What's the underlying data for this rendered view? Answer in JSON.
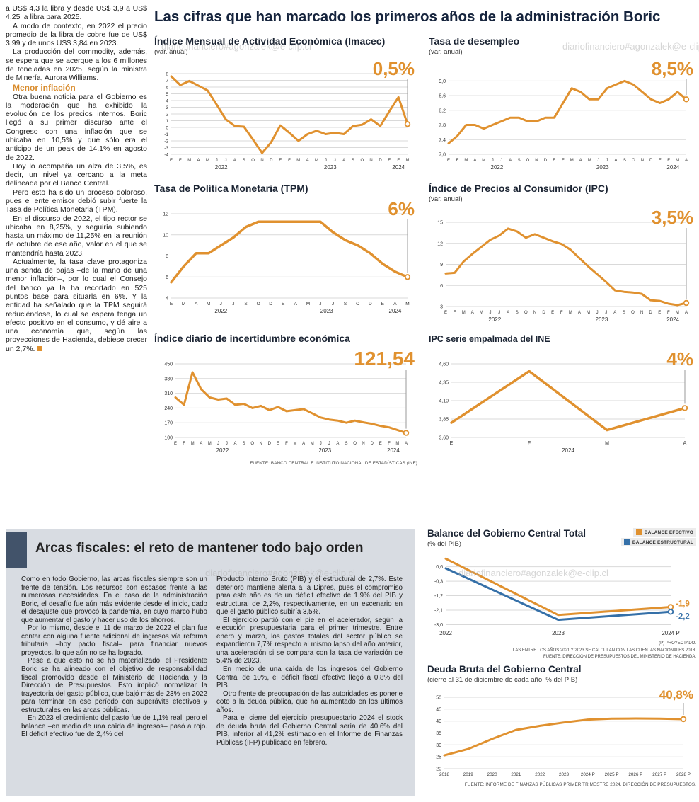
{
  "page": {
    "main_title": "Las cifras que han marcado los primeros años de la administración Boric",
    "watermark": "diariofinanciero#agonzalek@e-clip.cl"
  },
  "left_article": {
    "paragraphs": [
      "a US$ 4,3 la libra y desde US$ 3,9 a US$ 4,25 la libra para 2025.",
      "A modo de contexto, en 2022 el precio promedio de la libra de cobre fue de US$ 3,99 y de unos US$ 3,84 en 2023.",
      "La producción del commodity, además, se espera que se acerque a los 6 millones de toneladas en 2025, según la ministra de Minería, Aurora Williams."
    ],
    "subhead": "Menor inflación",
    "paragraphs2": [
      "Otra buena noticia para el Gobierno es la moderación que ha exhibido la evolución de los precios internos. Boric llegó a su primer discurso ante el Congreso con una inflación que se ubicaba en 10,5% y que sólo era el anticipo de un peak de 14,1% en agosto de 2022.",
      "Hoy lo acompaña un alza de 3,5%, es decir, un nivel ya cercano a la meta delineada por el Banco Central.",
      "Pero esto ha sido un proceso doloroso, pues el ente emisor debió subir fuerte la Tasa de Política Monetaria (TPM).",
      "En el discurso de 2022, el tipo rector se ubicaba en 8,25%, y seguiría subiendo hasta un máximo de 11,25% en la reunión de octubre de ese año, valor en el que se mantendría hasta 2023.",
      "Actualmente, la tasa clave protagoniza una senda de bajas –de la mano de una menor inflación–, por lo cual el Consejo del banco ya la ha recortado en 525 puntos base para situarla en 6%. Y la entidad ha señalado que la TPM seguirá reduciéndose, lo cual se espera tenga un efecto positivo en el consumo, y dé aire a una economía que, según las proyecciones de Hacienda, debiese crecer un 2,7%."
    ]
  },
  "charts_source": "FUENTE: BANCO CENTRAL E INSTITUTO NACIONAL DE ESTADÍSTICAS (INE)",
  "fiscal": {
    "title": "Arcas fiscales: el reto de mantener todo bajo orden",
    "col1": [
      "Como en todo Gobierno, las arcas fiscales siempre son un frente de tensión. Los recursos son escasos frente a las numerosas necesidades. En el caso de la administración Boric, el desafío fue aún más evidente desde el inicio, dado el desajuste que provocó la pandemia, en cuyo marco hubo que aumentar el gasto y hacer uso de los ahorros.",
      "Por lo mismo, desde el 11 de marzo de 2022 el plan fue contar con alguna fuente adicional de ingresos vía reforma tributaria –hoy pacto fiscal– para financiar nuevos proyectos, lo que aún no se ha logrado.",
      "Pese a que esto no se ha materializado, el Presidente Boric se ha alineado con el objetivo de responsabilidad fiscal promovido desde el Ministerio de Hacienda y la Dirección de Presupuestos. Esto implicó normalizar la trayectoria del gasto público, que bajó más de 23% en 2022 para terminar en ese período con superávits efectivos y estructurales en las arcas públicas.",
      "En 2023 el crecimiento del gasto fue de 1,1% real, pero el balance –en medio de una caída de ingresos– pasó a rojo. El déficit efectivo fue de 2,4% del"
    ],
    "col2": [
      "Producto Interno Bruto (PIB) y el estructural de 2,7%. Este deterioro mantiene alerta a la Dipres, pues el compromiso para este año es de un déficit efectivo de 1,9% del PIB y estructural de 2,2%, respectivamente, en un escenario en que el gasto público subiría 3,5%.",
      "El ejercicio partió con el pie en el acelerador, según la ejecución presupuestaria para el primer trimestre. Entre enero y marzo, los gastos totales del sector público se expandieron 7,7% respecto al mismo lapso del año anterior, una aceleración si se compara con la tasa de variación de 5,4% de 2023.",
      "En medio de una caída de los ingresos del Gobierno Central de 10%, el déficit fiscal efectivo llegó a 0,8% del PIB.",
      "Otro frente de preocupación de las autoridades es ponerle coto a la deuda pública, que ha aumentado en los últimos años.",
      "Para el cierre del ejercicio presupuestario 2024 el stock de deuda bruta del Gobierno Central sería de 40,6% del PIB, inferior al 41,2% estimado en el Informe de Finanzas Públicas (IFP) publicado en febrero."
    ]
  },
  "chart_data": [
    {
      "type": "line",
      "name": "imacec",
      "title": "Índice Mensual de Actividad Económica (Imacec)",
      "subtitle": "(var. anual)",
      "x_labels": [
        "E",
        "F",
        "M",
        "A",
        "M",
        "J",
        "J",
        "A",
        "S",
        "O",
        "N",
        "D",
        "E",
        "F",
        "M",
        "A",
        "M",
        "J",
        "J",
        "A",
        "S",
        "O",
        "N",
        "D",
        "E",
        "F",
        "M"
      ],
      "year_labels": [
        {
          "label": "2022",
          "start": 0,
          "end": 11
        },
        {
          "label": "2023",
          "start": 12,
          "end": 23
        },
        {
          "label": "2024",
          "start": 24,
          "end": 26
        }
      ],
      "ylim": [
        -4,
        8
      ],
      "yticks": [
        {
          "v": 8,
          "label": "8"
        },
        {
          "v": 7,
          "label": "7"
        },
        {
          "v": 6,
          "label": "6"
        },
        {
          "v": 5,
          "label": "5"
        },
        {
          "v": 4,
          "label": "4"
        },
        {
          "v": 3,
          "label": "3"
        },
        {
          "v": 2,
          "label": "2"
        },
        {
          "v": 1,
          "label": "1"
        },
        {
          "v": 0,
          "label": "0"
        },
        {
          "v": -1,
          "label": "-1"
        },
        {
          "v": -2,
          "label": "-2"
        },
        {
          "v": -3,
          "label": "-3"
        },
        {
          "v": -4,
          "label": "-4"
        }
      ],
      "series": [
        {
          "name": "Imacec",
          "color": "#e0912f",
          "values": [
            7.6,
            6.3,
            6.9,
            6.2,
            5.5,
            3.4,
            1.2,
            0.2,
            0.1,
            -1.8,
            -3.8,
            -2.2,
            0.3,
            -0.8,
            -2.0,
            -1.0,
            -0.5,
            -1.0,
            -0.8,
            -1.0,
            0.2,
            0.4,
            1.2,
            0.2,
            2.4,
            4.5,
            0.5
          ]
        }
      ],
      "callout": {
        "text": "0,5%",
        "color": "#e0912f"
      }
    },
    {
      "type": "line",
      "name": "desempleo",
      "title": "Tasa de desempleo",
      "subtitle": "(var. anual)",
      "x_labels": [
        "E",
        "F",
        "M",
        "A",
        "M",
        "J",
        "J",
        "A",
        "S",
        "O",
        "N",
        "D",
        "E",
        "F",
        "M",
        "A",
        "M",
        "J",
        "J",
        "A",
        "S",
        "O",
        "N",
        "D",
        "E",
        "F",
        "M",
        "A"
      ],
      "year_labels": [
        {
          "label": "2022",
          "start": 0,
          "end": 11
        },
        {
          "label": "2023",
          "start": 12,
          "end": 23
        },
        {
          "label": "2024",
          "start": 24,
          "end": 27
        }
      ],
      "ylim": [
        7.0,
        9.2
      ],
      "yticks": [
        {
          "v": 9.0,
          "label": "9,0"
        },
        {
          "v": 8.6,
          "label": "8,6"
        },
        {
          "v": 8.2,
          "label": "8,2"
        },
        {
          "v": 7.8,
          "label": "7,8"
        },
        {
          "v": 7.4,
          "label": "7,4"
        },
        {
          "v": 7.0,
          "label": "7,0"
        }
      ],
      "series": [
        {
          "name": "Tasa de desempleo",
          "color": "#e0912f",
          "values": [
            7.3,
            7.5,
            7.8,
            7.8,
            7.7,
            7.8,
            7.9,
            8.0,
            8.0,
            7.9,
            7.9,
            8.0,
            8.0,
            8.4,
            8.8,
            8.7,
            8.5,
            8.5,
            8.8,
            8.9,
            9.0,
            8.9,
            8.7,
            8.5,
            8.4,
            8.5,
            8.7,
            8.5
          ]
        }
      ],
      "callout": {
        "text": "8,5%",
        "color": "#e0912f"
      }
    },
    {
      "type": "line",
      "name": "tpm",
      "title": "Tasa de Política Monetaria (TPM)",
      "subtitle": "",
      "x_labels": [
        "E",
        "M",
        "A",
        "M",
        "J",
        "J",
        "S",
        "O",
        "D",
        "E",
        "A",
        "M",
        "J",
        "J",
        "S",
        "O",
        "D",
        "E",
        "A",
        "M"
      ],
      "year_labels": [
        {
          "label": "2022",
          "start": 0,
          "end": 8
        },
        {
          "label": "2023",
          "start": 9,
          "end": 16
        },
        {
          "label": "2024",
          "start": 17,
          "end": 19
        }
      ],
      "ylim": [
        4,
        12
      ],
      "yticks": [
        {
          "v": 12,
          "label": "12"
        },
        {
          "v": 10,
          "label": "10"
        },
        {
          "v": 8,
          "label": "8"
        },
        {
          "v": 6,
          "label": "6"
        },
        {
          "v": 4,
          "label": "4"
        }
      ],
      "series": [
        {
          "name": "TPM",
          "color": "#e0912f",
          "values": [
            5.5,
            7.0,
            8.25,
            8.25,
            9.0,
            9.75,
            10.75,
            11.25,
            11.25,
            11.25,
            11.25,
            11.25,
            11.25,
            10.25,
            9.5,
            9.0,
            8.25,
            7.25,
            6.5,
            6.0
          ]
        }
      ],
      "callout": {
        "text": "6%",
        "color": "#e0912f"
      }
    },
    {
      "type": "line",
      "name": "ipc",
      "title": "Índice de Precios al Consumidor (IPC)",
      "subtitle": "(var. anual)",
      "x_labels": [
        "E",
        "F",
        "M",
        "A",
        "M",
        "J",
        "J",
        "A",
        "S",
        "O",
        "N",
        "D",
        "E",
        "F",
        "M",
        "A",
        "M",
        "J",
        "J",
        "A",
        "S",
        "O",
        "N",
        "D",
        "E",
        "F",
        "M",
        "A"
      ],
      "year_labels": [
        {
          "label": "2022",
          "start": 0,
          "end": 11
        },
        {
          "label": "2023",
          "start": 12,
          "end": 23
        },
        {
          "label": "2024",
          "start": 24,
          "end": 27
        }
      ],
      "ylim": [
        3,
        15
      ],
      "yticks": [
        {
          "v": 15,
          "label": "15"
        },
        {
          "v": 12,
          "label": "12"
        },
        {
          "v": 9,
          "label": "9"
        },
        {
          "v": 6,
          "label": "6"
        },
        {
          "v": 3,
          "label": "3"
        }
      ],
      "series": [
        {
          "name": "IPC",
          "color": "#e0912f",
          "values": [
            7.7,
            7.8,
            9.4,
            10.5,
            11.5,
            12.5,
            13.1,
            14.1,
            13.7,
            12.8,
            13.3,
            12.8,
            12.3,
            11.9,
            11.1,
            9.9,
            8.7,
            7.6,
            6.5,
            5.3,
            5.1,
            5.0,
            4.8,
            3.9,
            3.8,
            3.4,
            3.2,
            3.5
          ]
        }
      ],
      "callout": {
        "text": "3,5%",
        "color": "#e0912f"
      }
    },
    {
      "type": "line",
      "name": "incertidumbre",
      "title": "Índice diario de incertidumbre económica",
      "subtitle": "",
      "x_labels": [
        "E",
        "F",
        "M",
        "A",
        "M",
        "J",
        "J",
        "A",
        "S",
        "O",
        "N",
        "D",
        "E",
        "F",
        "M",
        "A",
        "M",
        "J",
        "J",
        "A",
        "S",
        "O",
        "N",
        "D",
        "E",
        "F",
        "M",
        "A"
      ],
      "year_labels": [
        {
          "label": "2022",
          "start": 0,
          "end": 11
        },
        {
          "label": "2023",
          "start": 12,
          "end": 23
        },
        {
          "label": "2024",
          "start": 24,
          "end": 27
        }
      ],
      "ylim": [
        100,
        450
      ],
      "yticks": [
        {
          "v": 450,
          "label": "450"
        },
        {
          "v": 380,
          "label": "380"
        },
        {
          "v": 310,
          "label": "310"
        },
        {
          "v": 240,
          "label": "240"
        },
        {
          "v": 170,
          "label": "170"
        },
        {
          "v": 100,
          "label": "100"
        }
      ],
      "series": [
        {
          "name": "Incertidumbre económica",
          "color": "#e0912f",
          "values": [
            290,
            255,
            410,
            330,
            290,
            280,
            285,
            255,
            260,
            240,
            250,
            230,
            245,
            225,
            230,
            235,
            215,
            195,
            185,
            180,
            170,
            180,
            172,
            165,
            155,
            148,
            135,
            121.54
          ]
        }
      ],
      "callout": {
        "text": "121,54",
        "color": "#e0912f"
      }
    },
    {
      "type": "line",
      "name": "ipc-empalmada",
      "title": "IPC serie empalmada del INE",
      "subtitle": "",
      "x_labels": [
        "E",
        "F",
        "M",
        "A"
      ],
      "year_labels": [
        {
          "label": "2024",
          "start": 0,
          "end": 3
        }
      ],
      "ylim": [
        3.6,
        4.6
      ],
      "yticks": [
        {
          "v": 4.6,
          "label": "4,60"
        },
        {
          "v": 4.35,
          "label": "4,35"
        },
        {
          "v": 4.1,
          "label": "4,10"
        },
        {
          "v": 3.85,
          "label": "3,85"
        },
        {
          "v": 3.6,
          "label": "3,60"
        }
      ],
      "series": [
        {
          "name": "IPC serie empalmada",
          "color": "#e0912f",
          "values": [
            3.8,
            4.5,
            3.7,
            4.0
          ]
        }
      ],
      "callout": {
        "text": "4%",
        "color": "#e0912f"
      }
    },
    {
      "type": "line",
      "name": "balance-gobierno-central",
      "title": "Balance del Gobierno Central Total",
      "subtitle": "(% del PIB)",
      "x_labels": [
        "2022",
        "2023",
        "2024 P"
      ],
      "ylim": [
        -3.2,
        1.2
      ],
      "yticks": [
        {
          "v": 0.6,
          "label": "0,6"
        },
        {
          "v": -0.3,
          "label": "-0,3"
        },
        {
          "v": -1.2,
          "label": "-1,2"
        },
        {
          "v": -2.1,
          "label": "-2,1"
        },
        {
          "v": -3.0,
          "label": "-3,0"
        }
      ],
      "series": [
        {
          "name": "BALANCE EFECTIVO",
          "color": "#e0912f",
          "values": [
            1.1,
            -2.4,
            -1.9
          ],
          "end_label": "-1,9",
          "end_dy": -1
        },
        {
          "name": "BALANCE ESTRUCTURAL",
          "color": "#3570a8",
          "values": [
            0.5,
            -2.7,
            -2.2
          ],
          "end_label": "-2,2",
          "end_dy": 10
        }
      ],
      "legend": [
        {
          "label": "BALANCE EFECTIVO",
          "color": "#e0912f"
        },
        {
          "label": "BALANCE ESTRUCTURAL",
          "color": "#3570a8"
        }
      ],
      "notes": [
        "(P) PROYECTADO.",
        "LAS ENTRE LOS AÑOS 2021 Y 2023 SE CALCULAN CON LAS CUENTAS NACIONALES 2018.",
        "FUENTE: DIRECCIÓN DE PRESUPUESTOS DEL MINISTERIO DE HACIENDA."
      ]
    },
    {
      "type": "line",
      "name": "deuda-bruta",
      "title": "Deuda Bruta del Gobierno Central",
      "subtitle": "(cierre al 31 de diciembre de cada año, % del PIB)",
      "x_labels": [
        "2018",
        "2019",
        "2020",
        "2021",
        "2022",
        "2023",
        "2024 P",
        "2025 P",
        "2026 P",
        "2027 P",
        "2028 P"
      ],
      "ylim": [
        20,
        50
      ],
      "yticks": [
        {
          "v": 50,
          "label": "50"
        },
        {
          "v": 45,
          "label": "45"
        },
        {
          "v": 40,
          "label": "40"
        },
        {
          "v": 35,
          "label": "35"
        },
        {
          "v": 30,
          "label": "30"
        },
        {
          "v": 25,
          "label": "25"
        },
        {
          "v": 20,
          "label": "20"
        }
      ],
      "series": [
        {
          "name": "Deuda bruta",
          "color": "#e0912f",
          "values": [
            25.6,
            28.3,
            32.5,
            36.3,
            38.0,
            39.4,
            40.6,
            41.0,
            41.1,
            41.0,
            40.8
          ]
        }
      ],
      "callout": {
        "text": "40,8%",
        "color": "#e0912f"
      },
      "source": "FUENTE: INFORME DE FINANZAS PÚBLICAS PRIMER TRIMESTRE 2024, DIRECCIÓN DE PRESUPUESTOS."
    }
  ]
}
